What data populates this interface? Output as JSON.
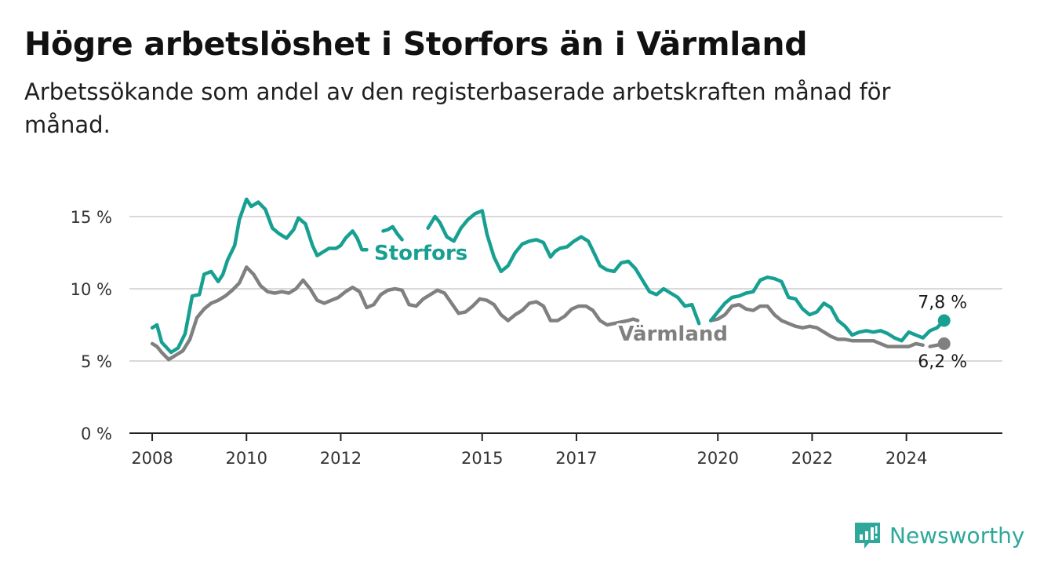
{
  "header": {
    "title": "Högre arbetslöshet i Storfors än i Värmland",
    "subtitle": "Arbetssökande som andel av den registerbaserade arbetskraften månad för månad."
  },
  "brand": {
    "name": "Newsworthy",
    "color": "#2ea89b",
    "icon": "newsworthy-logo-icon"
  },
  "chart_data": {
    "type": "line",
    "title": "Högre arbetslöshet i Storfors än i Värmland",
    "subtitle": "Arbetssökande som andel av den registerbaserade arbetskraften månad för månad.",
    "xlabel": "",
    "ylabel": "",
    "ylim": [
      0,
      15
    ],
    "y_ticks": [
      0,
      5,
      10,
      15
    ],
    "y_tick_labels": [
      "0 %",
      "5 %",
      "10 %",
      "15 %"
    ],
    "x_ticks": [
      2008,
      2010,
      2012,
      2015,
      2017,
      2020,
      2022,
      2024
    ],
    "x_tick_labels": [
      "2008",
      "2010",
      "2012",
      "2015",
      "2017",
      "2020",
      "2022",
      "2024"
    ],
    "grid": true,
    "legend": "direct-labels",
    "series": [
      {
        "name": "Storfors",
        "color": "#17a092",
        "end_label": "7,8 %",
        "x": [
          2008.0,
          2008.1,
          2008.2,
          2008.4,
          2008.55,
          2008.7,
          2008.85,
          2009.0,
          2009.1,
          2009.25,
          2009.4,
          2009.5,
          2009.6,
          2009.75,
          2009.85,
          2010.0,
          2010.1,
          2010.25,
          2010.4,
          2010.55,
          2010.7,
          2010.85,
          2011.0,
          2011.1,
          2011.25,
          2011.4,
          2011.5,
          2011.6,
          2011.75,
          2011.9,
          2012.0,
          2012.1,
          2012.25,
          2012.35,
          2012.45,
          2012.55
        ],
        "values": [
          7.3,
          7.5,
          6.3,
          5.6,
          5.9,
          6.9,
          9.5,
          9.6,
          11.0,
          11.2,
          10.5,
          11.0,
          12.0,
          13.0,
          14.8,
          16.2,
          15.7,
          16.0,
          15.5,
          14.2,
          13.8,
          13.5,
          14.1,
          14.9,
          14.5,
          13.0,
          12.3,
          12.5,
          12.8,
          12.8,
          13.0,
          13.5,
          14.0,
          13.5,
          12.7,
          12.7
        ]
      },
      {
        "name": "Storfors",
        "color": "#17a092",
        "x": [
          2012.9,
          2013.0,
          2013.1,
          2013.2,
          2013.3
        ],
        "values": [
          14.0,
          14.1,
          14.3,
          13.8,
          13.4
        ]
      },
      {
        "name": "Storfors",
        "color": "#17a092",
        "x": [
          2013.85,
          2014.0,
          2014.1,
          2014.25,
          2014.4,
          2014.55,
          2014.7,
          2014.85,
          2015.0,
          2015.1,
          2015.25,
          2015.4,
          2015.55,
          2015.7,
          2015.85,
          2016.0,
          2016.15,
          2016.3,
          2016.45,
          2016.55,
          2016.65,
          2016.8,
          2016.95,
          2017.1,
          2017.25,
          2017.4,
          2017.5,
          2017.65,
          2017.8,
          2017.95,
          2018.1,
          2018.25,
          2018.4,
          2018.55,
          2018.7,
          2018.85,
          2019.0,
          2019.15,
          2019.3,
          2019.45,
          2019.6
        ],
        "values": [
          14.2,
          15.0,
          14.6,
          13.6,
          13.3,
          14.2,
          14.8,
          15.2,
          15.4,
          13.8,
          12.2,
          11.2,
          11.6,
          12.5,
          13.1,
          13.3,
          13.4,
          13.2,
          12.2,
          12.6,
          12.8,
          12.9,
          13.3,
          13.6,
          13.3,
          12.3,
          11.6,
          11.3,
          11.2,
          11.8,
          11.9,
          11.4,
          10.6,
          9.8,
          9.6,
          10.0,
          9.7,
          9.4,
          8.8,
          8.9,
          7.6
        ]
      },
      {
        "name": "Storfors",
        "color": "#17a092",
        "x": [
          2019.85,
          2020.0,
          2020.15,
          2020.3,
          2020.45,
          2020.6,
          2020.75,
          2020.9,
          2021.05,
          2021.2,
          2021.35,
          2021.5,
          2021.65,
          2021.8,
          2021.95,
          2022.1,
          2022.25,
          2022.4,
          2022.55,
          2022.7,
          2022.85,
          2023.0,
          2023.15,
          2023.3,
          2023.45,
          2023.6,
          2023.75,
          2023.9,
          2024.05,
          2024.2,
          2024.35,
          2024.5,
          2024.65,
          2024.8
        ],
        "values": [
          7.8,
          8.4,
          9.0,
          9.4,
          9.5,
          9.7,
          9.8,
          10.6,
          10.8,
          10.7,
          10.5,
          9.4,
          9.3,
          8.6,
          8.2,
          8.4,
          9.0,
          8.7,
          7.8,
          7.4,
          6.8,
          7.0,
          7.1,
          7.0,
          7.1,
          6.9,
          6.6,
          6.4,
          7.0,
          6.8,
          6.6,
          7.1,
          7.3,
          7.8
        ]
      },
      {
        "name": "Värmland",
        "color": "#808080",
        "end_label": "6,2 %",
        "x": [
          2008.0,
          2008.1,
          2008.2,
          2008.35,
          2008.5,
          2008.65,
          2008.8,
          2008.95,
          2009.1,
          2009.25,
          2009.4,
          2009.55,
          2009.7,
          2009.85,
          2010.0,
          2010.15,
          2010.3,
          2010.45,
          2010.6,
          2010.75,
          2010.9,
          2011.05,
          2011.2,
          2011.35,
          2011.5,
          2011.65,
          2011.8,
          2011.95,
          2012.1,
          2012.25,
          2012.4,
          2012.55,
          2012.7,
          2012.85,
          2013.0,
          2013.15,
          2013.3,
          2013.45,
          2013.6,
          2013.75,
          2013.9,
          2014.05,
          2014.2,
          2014.35,
          2014.5,
          2014.65,
          2014.8,
          2014.95,
          2015.1,
          2015.25,
          2015.4,
          2015.55,
          2015.7,
          2015.85,
          2016.0,
          2016.15,
          2016.3,
          2016.45,
          2016.6,
          2016.75,
          2016.9,
          2017.05,
          2017.2,
          2017.35,
          2017.5,
          2017.65,
          2017.8,
          2017.95,
          2018.1,
          2018.2,
          2018.3
        ],
        "values": [
          6.2,
          6.0,
          5.6,
          5.1,
          5.4,
          5.7,
          6.5,
          8.0,
          8.6,
          9.0,
          9.2,
          9.5,
          9.9,
          10.4,
          11.5,
          11.0,
          10.2,
          9.8,
          9.7,
          9.8,
          9.7,
          10.0,
          10.6,
          10.0,
          9.2,
          9.0,
          9.2,
          9.4,
          9.8,
          10.1,
          9.8,
          8.7,
          8.9,
          9.6,
          9.9,
          10.0,
          9.9,
          8.9,
          8.8,
          9.3,
          9.6,
          9.9,
          9.7,
          9.0,
          8.3,
          8.4,
          8.8,
          9.3,
          9.2,
          8.9,
          8.2,
          7.8,
          8.2,
          8.5,
          9.0,
          9.1,
          8.8,
          7.8,
          7.8,
          8.1,
          8.6,
          8.8,
          8.8,
          8.5,
          7.8,
          7.5,
          7.6,
          7.7,
          7.8,
          7.9,
          7.8
        ]
      },
      {
        "name": "Värmland",
        "color": "#808080",
        "x": [
          2019.85,
          2020.0,
          2020.15,
          2020.3,
          2020.45,
          2020.6,
          2020.75,
          2020.9,
          2021.05,
          2021.2,
          2021.35,
          2021.5,
          2021.65,
          2021.8,
          2021.95,
          2022.1,
          2022.25,
          2022.4,
          2022.55,
          2022.7,
          2022.85,
          2023.0,
          2023.15,
          2023.3,
          2023.45,
          2023.6,
          2023.75,
          2023.9,
          2024.05,
          2024.2,
          2024.35
        ],
        "values": [
          7.8,
          7.9,
          8.2,
          8.8,
          8.9,
          8.6,
          8.5,
          8.8,
          8.8,
          8.2,
          7.8,
          7.6,
          7.4,
          7.3,
          7.4,
          7.3,
          7.0,
          6.7,
          6.5,
          6.5,
          6.4,
          6.4,
          6.4,
          6.4,
          6.2,
          6.0,
          6.0,
          6.0,
          6.0,
          6.2,
          6.1
        ]
      },
      {
        "name": "Värmland",
        "color": "#808080",
        "x": [
          2024.5,
          2024.65,
          2024.8
        ],
        "values": [
          6.0,
          6.1,
          6.2
        ]
      }
    ],
    "labels": [
      {
        "text": "Storfors",
        "series": "Storfors",
        "x": 2013.7,
        "y": 12.5
      },
      {
        "text": "Värmland",
        "series": "Värmland",
        "x": 2019.05,
        "y": 6.9
      }
    ]
  }
}
